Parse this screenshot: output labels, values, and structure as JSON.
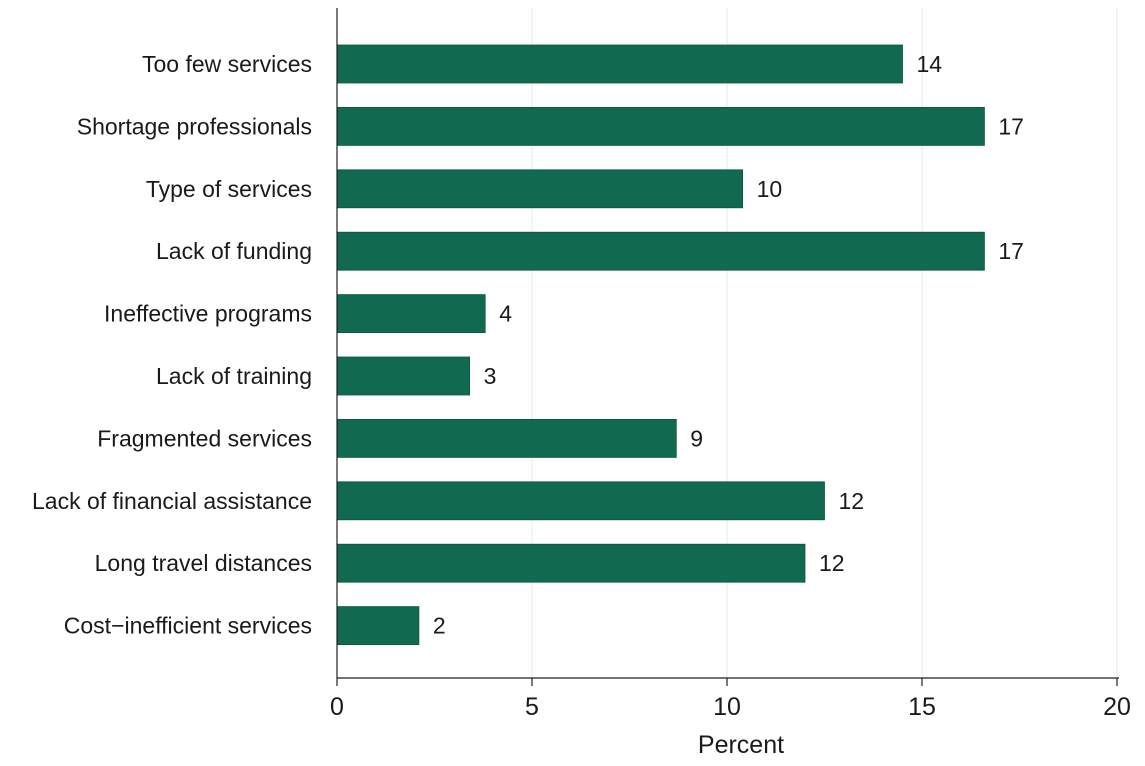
{
  "chart_data": {
    "type": "bar",
    "orientation": "horizontal",
    "title": "",
    "xlabel": "Percent",
    "ylabel": "",
    "categories": [
      "Too few services",
      "Shortage professionals",
      "Type of services",
      "Lack of funding",
      "Ineffective programs",
      "Lack of training",
      "Fragmented services",
      "Lack of financial assistance",
      "Long travel distances",
      "Cost−inefficient services"
    ],
    "values": [
      14.5,
      16.6,
      10.4,
      16.6,
      3.8,
      3.4,
      8.7,
      12.5,
      12.0,
      2.1
    ],
    "value_labels": [
      "14",
      "17",
      "10",
      "17",
      "4",
      "3",
      "9",
      "12",
      "12",
      "2"
    ],
    "xlim": [
      0,
      20
    ],
    "xticks": [
      0,
      5,
      10,
      15,
      20
    ],
    "xtick_labels": [
      "0",
      "5",
      "10",
      "15",
      "20"
    ],
    "grid": "vertical",
    "legend": "none",
    "bar_color": "#116a50",
    "grid_color": "#e4ecec"
  }
}
